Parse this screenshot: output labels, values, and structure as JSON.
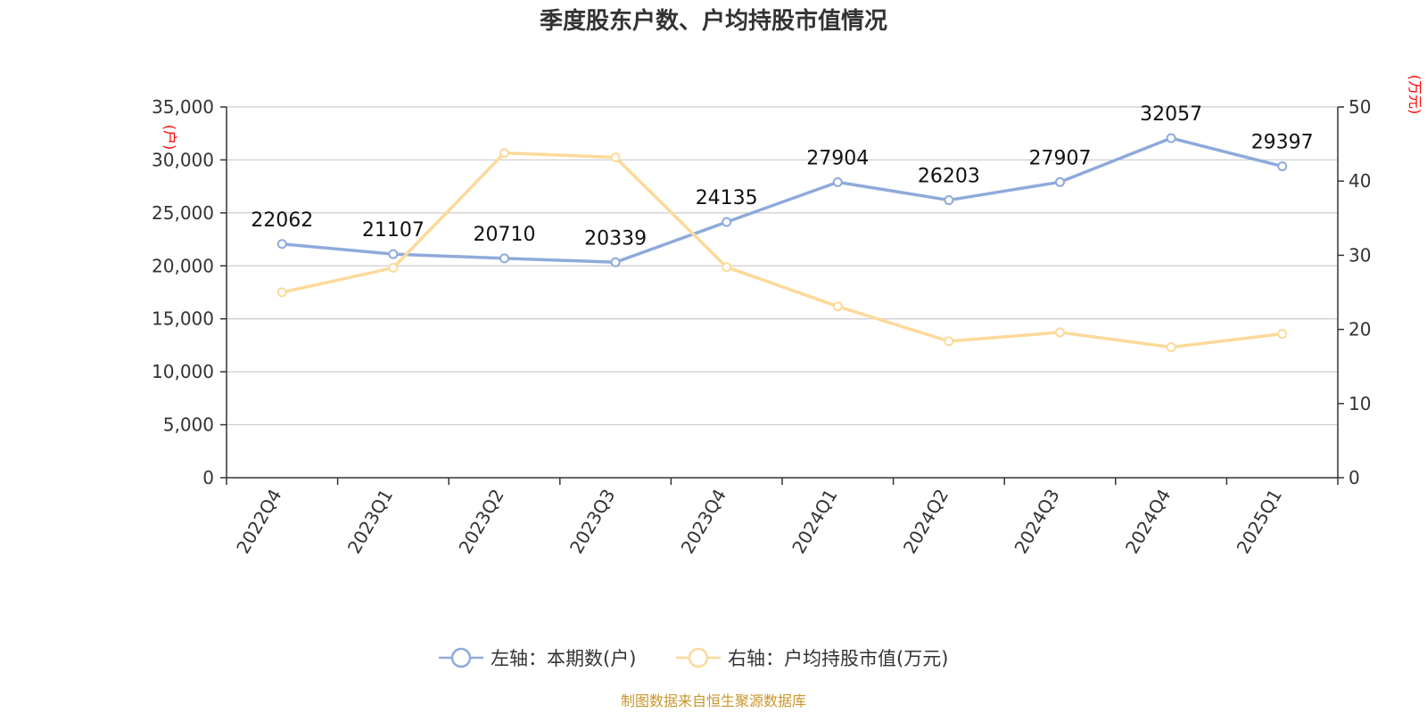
{
  "chart_data": {
    "type": "line",
    "title": "季度股东户数、户均持股市值情况",
    "categories": [
      "2022Q4",
      "2023Q1",
      "2023Q2",
      "2023Q3",
      "2023Q4",
      "2024Q1",
      "2024Q2",
      "2024Q3",
      "2024Q4",
      "2025Q1"
    ],
    "left_axis": {
      "unit_label": "(户)",
      "ylim": [
        0,
        35000
      ],
      "ticks": [
        0,
        5000,
        10000,
        15000,
        20000,
        25000,
        30000,
        35000
      ],
      "tick_labels": [
        "0",
        "5,000",
        "10,000",
        "15,000",
        "20,000",
        "25,000",
        "30,000",
        "35,000"
      ]
    },
    "right_axis": {
      "unit_label": "(万元)",
      "ylim": [
        0,
        50
      ],
      "ticks": [
        0,
        10,
        20,
        30,
        40,
        50
      ],
      "tick_labels": [
        "0",
        "10",
        "20",
        "30",
        "40",
        "50"
      ]
    },
    "series": [
      {
        "name": "左轴：本期数(户)",
        "axis": "left",
        "color": "#8eaadb",
        "values": [
          22062,
          21107,
          20710,
          20339,
          24135,
          27904,
          26203,
          27907,
          32057,
          29397
        ],
        "data_labels": [
          "22062",
          "21107",
          "20710",
          "20339",
          "24135",
          "27904",
          "26203",
          "27907",
          "32057",
          "29397"
        ]
      },
      {
        "name": "右轴：户均持股市值(万元)",
        "axis": "right",
        "color": "#fdd99a",
        "values": [
          25.0,
          28.3,
          43.8,
          43.2,
          28.4,
          23.1,
          18.4,
          19.6,
          17.6,
          19.4
        ]
      }
    ],
    "grid": true,
    "legend_position": "bottom"
  },
  "source_text": "制图数据来自恒生聚源数据库"
}
